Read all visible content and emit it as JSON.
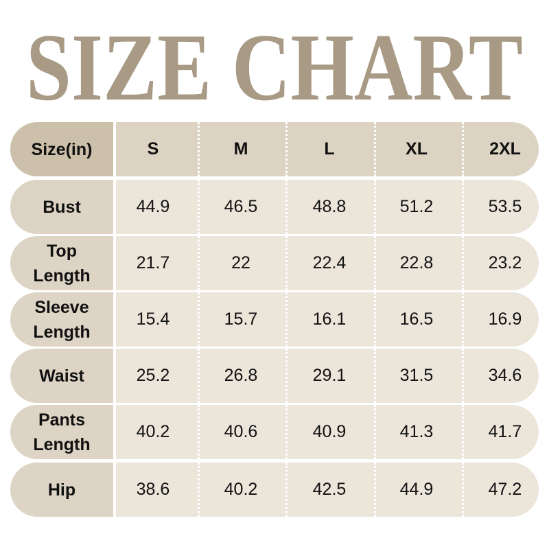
{
  "title": "SIZE CHART",
  "table": {
    "header": [
      "Size(in)",
      "S",
      "M",
      "L",
      "XL",
      "2XL"
    ],
    "rows": [
      [
        "Bust",
        44.9,
        46.5,
        48.8,
        51.2,
        53.5
      ],
      [
        "Top Length",
        21.7,
        22,
        22.4,
        22.8,
        23.2
      ],
      [
        "Sleeve Length",
        15.4,
        15.7,
        16.1,
        16.5,
        16.9
      ],
      [
        "Waist",
        25.2,
        26.8,
        29.1,
        31.5,
        34.6
      ],
      [
        "Pants Length",
        40.2,
        40.6,
        40.9,
        41.3,
        41.7
      ],
      [
        "Hip",
        38.6,
        40.2,
        42.5,
        44.9,
        47.2
      ]
    ]
  }
}
